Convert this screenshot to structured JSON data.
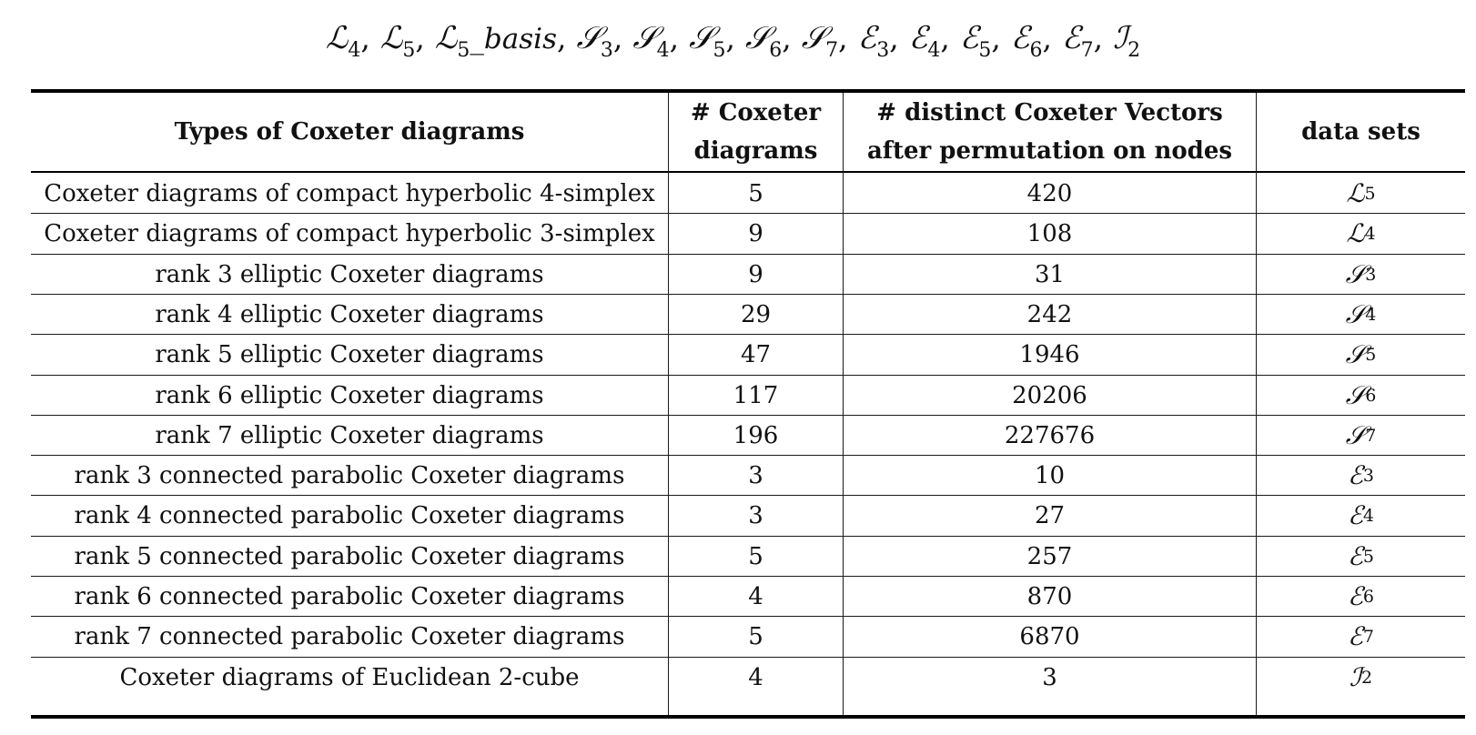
{
  "datasets_line": [
    {
      "letter": "ℒ",
      "sub": "4",
      "suffix": ""
    },
    {
      "letter": "ℒ",
      "sub": "5",
      "suffix": ""
    },
    {
      "letter": "ℒ",
      "sub": "5",
      "suffix": "_basis"
    },
    {
      "letter": "𝒮",
      "sub": "3",
      "suffix": ""
    },
    {
      "letter": "𝒮",
      "sub": "4",
      "suffix": ""
    },
    {
      "letter": "𝒮",
      "sub": "5",
      "suffix": ""
    },
    {
      "letter": "𝒮",
      "sub": "6",
      "suffix": ""
    },
    {
      "letter": "𝒮",
      "sub": "7",
      "suffix": ""
    },
    {
      "letter": "ℰ",
      "sub": "3",
      "suffix": ""
    },
    {
      "letter": "ℰ",
      "sub": "4",
      "suffix": ""
    },
    {
      "letter": "ℰ",
      "sub": "5",
      "suffix": ""
    },
    {
      "letter": "ℰ",
      "sub": "6",
      "suffix": ""
    },
    {
      "letter": "ℰ",
      "sub": "7",
      "suffix": ""
    },
    {
      "letter": "ℐ",
      "sub": "2",
      "suffix": ""
    }
  ],
  "table": {
    "headers": [
      "Types of Coxeter diagrams",
      "# Coxeter diagrams",
      "# distinct Coxeter Vectors after permutation on nodes",
      "data sets"
    ],
    "rows": [
      {
        "type": "Coxeter diagrams of compact hyperbolic 4-simplex",
        "count": "5",
        "vectors": "420",
        "set_letter": "ℒ",
        "set_sub": "5"
      },
      {
        "type": "Coxeter diagrams of compact hyperbolic 3-simplex",
        "count": "9",
        "vectors": "108",
        "set_letter": "ℒ",
        "set_sub": "4"
      },
      {
        "type": "rank 3 elliptic Coxeter diagrams",
        "count": "9",
        "vectors": "31",
        "set_letter": "𝒮",
        "set_sub": "3"
      },
      {
        "type": "rank 4 elliptic Coxeter diagrams",
        "count": "29",
        "vectors": "242",
        "set_letter": "𝒮",
        "set_sub": "4"
      },
      {
        "type": "rank 5 elliptic Coxeter diagrams",
        "count": "47",
        "vectors": "1946",
        "set_letter": "𝒮",
        "set_sub": "5"
      },
      {
        "type": "rank 6 elliptic Coxeter diagrams",
        "count": "117",
        "vectors": "20206",
        "set_letter": "𝒮",
        "set_sub": "6"
      },
      {
        "type": "rank 7 elliptic Coxeter diagrams",
        "count": "196",
        "vectors": "227676",
        "set_letter": "𝒮",
        "set_sub": "7"
      },
      {
        "type": "rank 3 connected parabolic Coxeter diagrams",
        "count": "3",
        "vectors": "10",
        "set_letter": "ℰ",
        "set_sub": "3"
      },
      {
        "type": "rank 4 connected parabolic Coxeter diagrams",
        "count": "3",
        "vectors": "27",
        "set_letter": "ℰ",
        "set_sub": "4"
      },
      {
        "type": "rank 5 connected parabolic Coxeter diagrams",
        "count": "5",
        "vectors": "257",
        "set_letter": "ℰ",
        "set_sub": "5"
      },
      {
        "type": "rank 6 connected parabolic Coxeter diagrams",
        "count": "4",
        "vectors": "870",
        "set_letter": "ℰ",
        "set_sub": "6"
      },
      {
        "type": "rank 7 connected parabolic Coxeter diagrams",
        "count": "5",
        "vectors": "6870",
        "set_letter": "ℰ",
        "set_sub": "7"
      },
      {
        "type": "Coxeter diagrams of Euclidean 2-cube",
        "count": "4",
        "vectors": "3",
        "set_letter": "ℐ",
        "set_sub": "2"
      }
    ]
  }
}
